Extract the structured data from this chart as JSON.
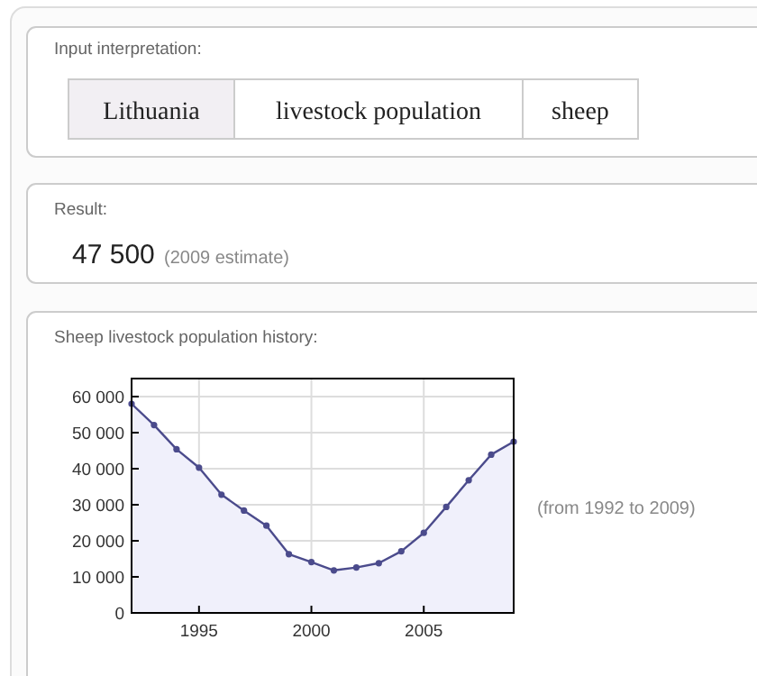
{
  "chart_data": {
    "type": "area",
    "title": "Sheep livestock population history:",
    "annotations": [
      "Input interpretation:",
      "Lithuania",
      "livestock population",
      "sheep",
      "Result:",
      "47 500",
      "(2009 estimate)",
      "(from 1992 to 2009)"
    ],
    "x": [
      1992,
      1993,
      1994,
      1995,
      1996,
      1997,
      1998,
      1999,
      2000,
      2001,
      2002,
      2003,
      2004,
      2005,
      2006,
      2007,
      2008,
      2009
    ],
    "series": [
      {
        "color": "#4b4b8c",
        "values": [
          58000,
          52100,
          45400,
          40300,
          32800,
          28400,
          24200,
          16300,
          14100,
          11800,
          12600,
          13800,
          17100,
          22200,
          29400,
          36800,
          43900,
          47500
        ]
      }
    ],
    "xlim": [
      1992,
      2009
    ],
    "xticks": [
      1995,
      2000,
      2005
    ],
    "ylim": [
      0,
      65000
    ],
    "yticks": [
      0,
      {
        "value": 10000,
        "label": "10 000"
      },
      {
        "value": 20000,
        "label": "20 000"
      },
      {
        "value": 30000,
        "label": "30 000"
      },
      {
        "value": 40000,
        "label": "40 000"
      },
      {
        "value": 50000,
        "label": "50 000"
      },
      {
        "value": 60000,
        "label": "60 000"
      }
    ],
    "grid": true,
    "marker": "circle"
  }
}
